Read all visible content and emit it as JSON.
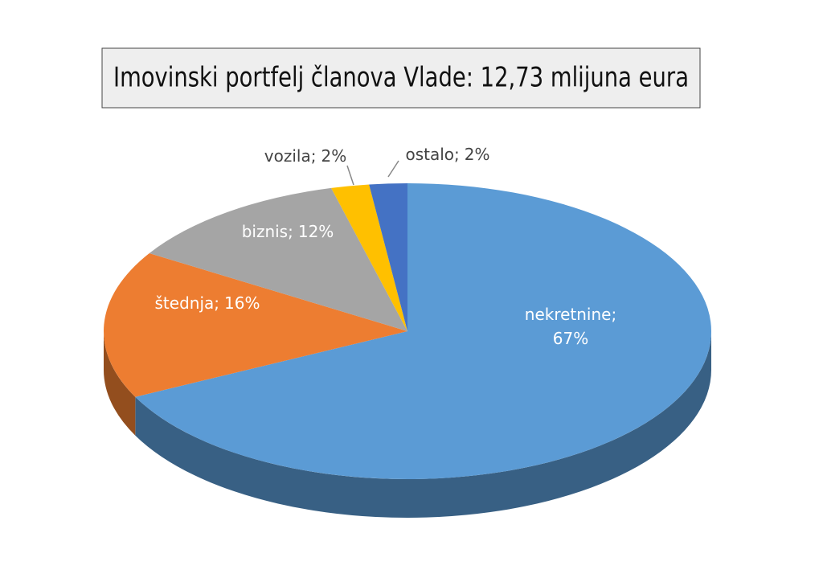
{
  "chart_data": {
    "type": "pie3d",
    "title": "Imovinski portfelj članova Vlade: 12,73 mlijuna eura",
    "categories": [
      "nekretnine;",
      "štednja;",
      "biznis;",
      "vozila;",
      "ostalo;"
    ],
    "values": [
      67,
      16,
      12,
      2,
      2
    ],
    "value_labels": [
      "67%",
      "16%",
      "12%",
      "2%",
      "2%"
    ],
    "colors": [
      "#5b9bd5",
      "#ed7d31",
      "#a5a5a5",
      "#ffc000",
      "#4472c4"
    ]
  }
}
